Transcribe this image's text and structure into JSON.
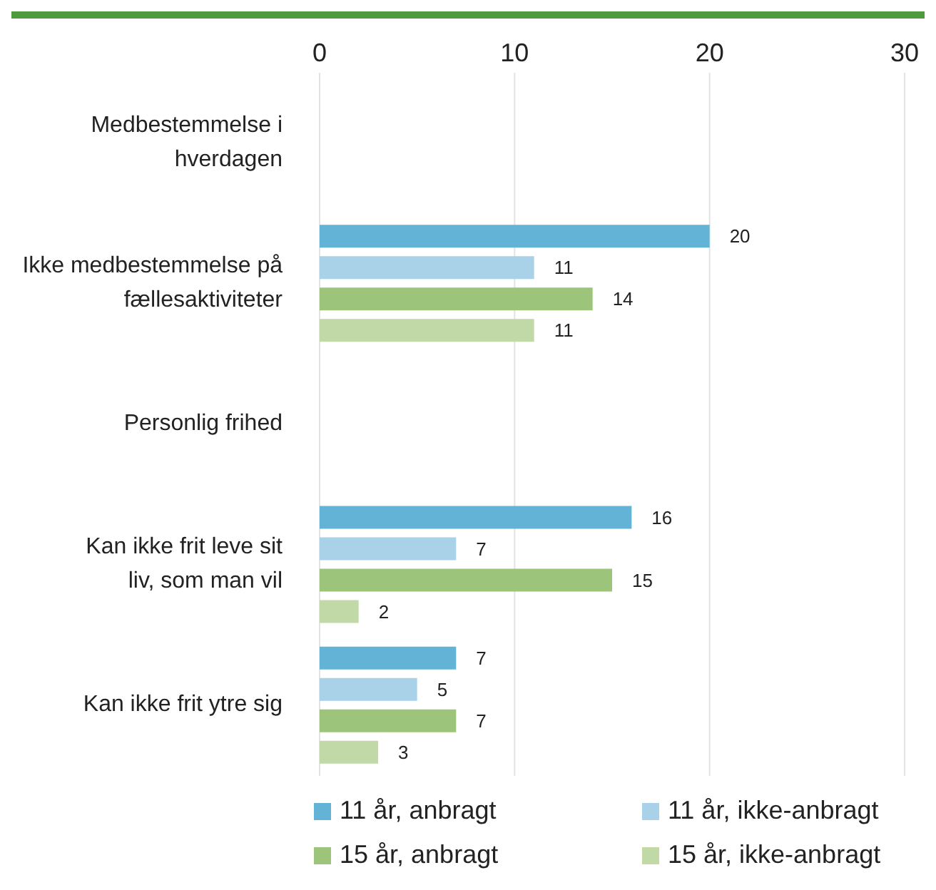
{
  "chart_data": {
    "type": "bar",
    "orientation": "horizontal",
    "categories": [
      "Medbestemmelse i hverdagen",
      "Ikke medbestemmelse på fællesaktiviteter",
      "Personlig frihed",
      "Kan ikke frit leve sit liv, som man vil",
      "Kan ikke frit ytre sig"
    ],
    "series": [
      {
        "name": "11 år, anbragt",
        "color": "#63b3d6",
        "values": [
          null,
          20,
          null,
          16,
          7
        ]
      },
      {
        "name": "11 år, ikke-anbragt",
        "color": "#a9d1e8",
        "values": [
          null,
          11,
          null,
          7,
          5
        ]
      },
      {
        "name": "15 år, anbragt",
        "color": "#9cc47a",
        "values": [
          null,
          14,
          null,
          15,
          7
        ]
      },
      {
        "name": "15 år, ikke-anbragt",
        "color": "#c0d9a6",
        "values": [
          null,
          11,
          null,
          2,
          3
        ]
      }
    ],
    "xlim": [
      0,
      30
    ],
    "xticks": [
      0,
      10,
      20,
      30
    ],
    "grid": "x",
    "legend": "bottom",
    "data_labels": true
  }
}
